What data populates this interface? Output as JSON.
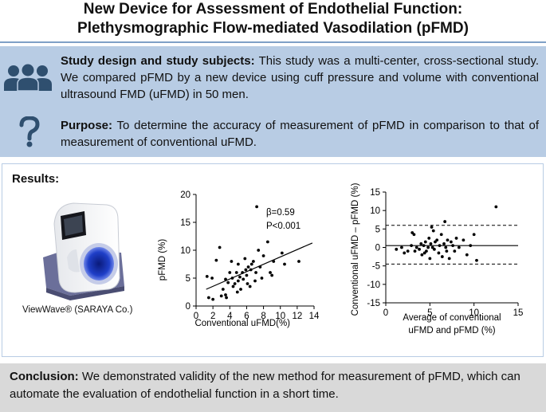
{
  "title": {
    "line1": "New Device for Assessment of Endothelial Function:",
    "line2": "Plethysmographic Flow-mediated Vasodilation (pFMD)"
  },
  "study_design": {
    "heading": "Study design and study subjects:",
    "text": " This study was a multi-center, cross-sectional study. We compared pFMD by a new device using cuff pressure and volume with conventional ultrasound FMD (uFMD) in 50 men.",
    "icon": "group-icon"
  },
  "purpose": {
    "heading": "Purpose:",
    "text": " To determine the accuracy of measurement of pFMD in comparison to that of measurement of conventional uFMD.",
    "icon": "question-mark-icon"
  },
  "results": {
    "heading": "Results:",
    "device_caption": "ViewWave® (SARAYA Co.)"
  },
  "conclusion": {
    "heading": "Conclusion:",
    "text": " We demonstrated validity of the new method for measurement of pFMD, which can automate the evaluation of endothelial function in a short time."
  },
  "colors": {
    "band": "#b8cce4",
    "rule": "#7fa0c6",
    "conclusion_band": "#d9d9d9",
    "icon": "#2f4f6f"
  },
  "chart_data": [
    {
      "type": "scatter",
      "title": "",
      "xlabel": "Conventional uFMD(%)",
      "ylabel": "pFMD (%)",
      "xlim": [
        0,
        14
      ],
      "ylim": [
        0,
        20
      ],
      "xticks": [
        0,
        2,
        4,
        6,
        8,
        10,
        12,
        14
      ],
      "yticks": [
        0,
        5,
        10,
        15,
        20
      ],
      "annotations": [
        "β=0.59",
        "P<0.001"
      ],
      "regression": {
        "x": [
          1.2,
          13.8
        ],
        "y": [
          3.0,
          11.3
        ]
      },
      "points": [
        [
          1.5,
          1.5
        ],
        [
          2.0,
          1.2
        ],
        [
          1.3,
          5.3
        ],
        [
          1.9,
          5.0
        ],
        [
          2.4,
          8.2
        ],
        [
          2.8,
          10.5
        ],
        [
          3.0,
          1.8
        ],
        [
          3.2,
          3.0
        ],
        [
          3.5,
          2.0
        ],
        [
          3.5,
          4.8
        ],
        [
          3.8,
          4.2
        ],
        [
          4.0,
          6.0
        ],
        [
          4.2,
          8.0
        ],
        [
          4.3,
          5.0
        ],
        [
          4.4,
          3.5
        ],
        [
          4.6,
          4.0
        ],
        [
          4.8,
          6.0
        ],
        [
          5.0,
          4.5
        ],
        [
          5.0,
          7.5
        ],
        [
          5.2,
          5.2
        ],
        [
          5.3,
          3.0
        ],
        [
          5.5,
          6.0
        ],
        [
          5.6,
          4.8
        ],
        [
          5.8,
          8.5
        ],
        [
          5.9,
          6.5
        ],
        [
          6.0,
          5.5
        ],
        [
          6.1,
          4.0
        ],
        [
          6.2,
          7.0
        ],
        [
          6.4,
          3.5
        ],
        [
          6.5,
          6.5
        ],
        [
          6.6,
          7.5
        ],
        [
          6.8,
          8.0
        ],
        [
          7.0,
          4.5
        ],
        [
          7.1,
          6.0
        ],
        [
          7.2,
          17.8
        ],
        [
          7.4,
          10.0
        ],
        [
          7.6,
          7.0
        ],
        [
          7.8,
          5.0
        ],
        [
          8.0,
          9.0
        ],
        [
          8.5,
          11.5
        ],
        [
          8.8,
          6.0
        ],
        [
          9.0,
          5.5
        ],
        [
          9.2,
          8.0
        ],
        [
          10.2,
          9.5
        ],
        [
          10.5,
          7.5
        ],
        [
          12.2,
          8.0
        ],
        [
          3.6,
          1.5
        ],
        [
          4.9,
          2.5
        ]
      ]
    },
    {
      "type": "scatter",
      "title": "",
      "xlabel": "Average of conventional uFMD and pFMD (%)",
      "ylabel": "Conventional uFMD – pFMD (%)",
      "xlim": [
        0,
        15
      ],
      "ylim": [
        -15,
        15
      ],
      "xticks": [
        0,
        5,
        10,
        15
      ],
      "yticks": [
        -15,
        -10,
        -5,
        0,
        5,
        10,
        15
      ],
      "reference_lines": {
        "mean": 0.5,
        "upper_loa": 6.0,
        "lower_loa": -4.5
      },
      "points": [
        [
          1.2,
          -0.5
        ],
        [
          1.8,
          0.0
        ],
        [
          2.1,
          -1.5
        ],
        [
          2.5,
          -1.0
        ],
        [
          2.9,
          0.5
        ],
        [
          3.0,
          4.0
        ],
        [
          3.2,
          3.5
        ],
        [
          3.3,
          -1.0
        ],
        [
          3.5,
          0.0
        ],
        [
          3.8,
          -0.5
        ],
        [
          4.0,
          1.0
        ],
        [
          4.1,
          -2.0
        ],
        [
          4.3,
          0.5
        ],
        [
          4.5,
          1.5
        ],
        [
          4.6,
          -1.0
        ],
        [
          4.8,
          0.0
        ],
        [
          4.9,
          2.5
        ],
        [
          5.0,
          -3.0
        ],
        [
          5.1,
          1.0
        ],
        [
          5.2,
          5.5
        ],
        [
          5.3,
          0.0
        ],
        [
          5.5,
          -0.5
        ],
        [
          5.6,
          1.5
        ],
        [
          5.8,
          2.0
        ],
        [
          6.0,
          -1.5
        ],
        [
          6.1,
          0.5
        ],
        [
          6.3,
          3.5
        ],
        [
          6.4,
          -2.5
        ],
        [
          6.6,
          1.0
        ],
        [
          6.7,
          7.0
        ],
        [
          6.8,
          0.0
        ],
        [
          7.0,
          2.0
        ],
        [
          7.2,
          -3.0
        ],
        [
          7.4,
          1.5
        ],
        [
          7.6,
          0.5
        ],
        [
          7.8,
          -1.0
        ],
        [
          8.0,
          2.5
        ],
        [
          8.3,
          0.0
        ],
        [
          8.8,
          2.0
        ],
        [
          9.2,
          -2.0
        ],
        [
          9.6,
          0.5
        ],
        [
          10.0,
          3.5
        ],
        [
          10.3,
          -3.5
        ],
        [
          12.5,
          11.0
        ],
        [
          5.4,
          4.5
        ],
        [
          4.4,
          -1.5
        ],
        [
          6.9,
          -1.0
        ]
      ]
    }
  ]
}
